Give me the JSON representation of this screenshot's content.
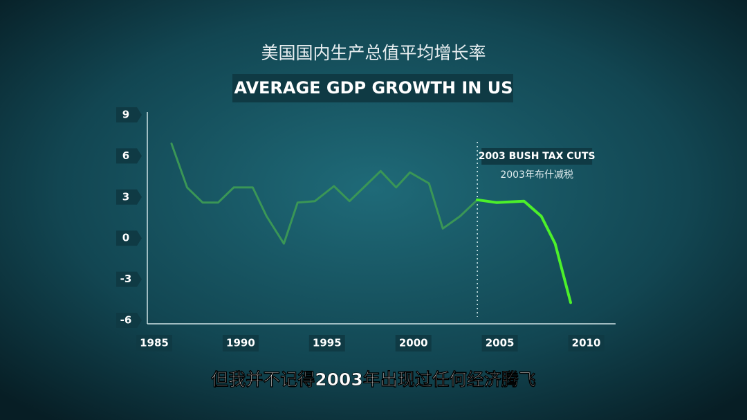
{
  "chart_data": {
    "type": "line",
    "title": "美国国内生产总值平均增长率",
    "subtitle": "AVERAGE GDP GROWTH IN US",
    "series": [
      {
        "color": "#3a9656",
        "x": [
          1986.0,
          1986.9,
          1987.8,
          1988.7,
          1989.6,
          1990.7,
          1991.5,
          1992.5,
          1993.3,
          1994.3,
          1995.4,
          1996.3,
          1997.2,
          1998.1,
          1999.0,
          1999.8,
          2000.9,
          2001.7,
          2002.7,
          2003.7
        ],
        "values": [
          6.9,
          3.7,
          2.6,
          2.6,
          3.7,
          3.7,
          1.6,
          -0.4,
          2.6,
          2.7,
          3.8,
          2.7,
          3.8,
          4.9,
          3.7,
          4.8,
          4.0,
          0.7,
          1.6,
          2.8
        ]
      },
      {
        "color": "#4cf02a",
        "x": [
          2003.7,
          2004.8,
          2006.4,
          2007.4,
          2008.2,
          2009.1
        ],
        "values": [
          2.8,
          2.6,
          2.7,
          1.6,
          -0.4,
          -4.7
        ]
      }
    ],
    "xlim": [
      1984.6,
      2011.7
    ],
    "xticks": [
      1985,
      1990,
      1995,
      2000,
      2005,
      2010
    ],
    "ylim": [
      -6,
      9
    ],
    "yticks": [
      9,
      6,
      3,
      0,
      -3,
      -6
    ],
    "annotation": {
      "x": 2003.7,
      "label": "2003 BUSH TAX CUTS",
      "sublabel": "2003年布什减税"
    },
    "caption": "但我并不记得2003年出现过任何经济腾飞"
  }
}
